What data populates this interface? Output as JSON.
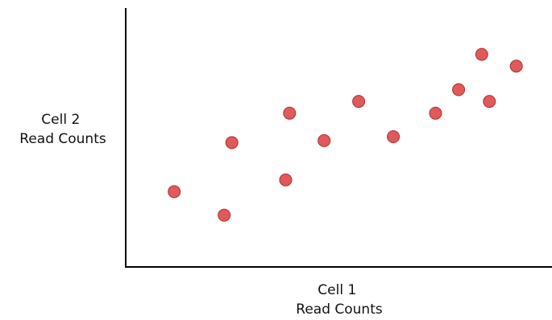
{
  "chart_data": {
    "type": "scatter",
    "title": "",
    "xlabel_lines": [
      "Cell 1",
      "Read Counts"
    ],
    "ylabel_lines": [
      "Cell 2",
      "Read Counts"
    ],
    "xlim": [
      0,
      1
    ],
    "ylim": [
      0,
      1
    ],
    "grid": false,
    "ticks": false,
    "point_color": "#e05a5a",
    "point_edge_color": "#b03030",
    "points": [
      {
        "x": 0.08,
        "y": 0.31
      },
      {
        "x": 0.21,
        "y": 0.19
      },
      {
        "x": 0.23,
        "y": 0.56
      },
      {
        "x": 0.37,
        "y": 0.37
      },
      {
        "x": 0.38,
        "y": 0.71
      },
      {
        "x": 0.47,
        "y": 0.57
      },
      {
        "x": 0.56,
        "y": 0.77
      },
      {
        "x": 0.65,
        "y": 0.59
      },
      {
        "x": 0.76,
        "y": 0.71
      },
      {
        "x": 0.82,
        "y": 0.83
      },
      {
        "x": 0.88,
        "y": 1.01
      },
      {
        "x": 0.9,
        "y": 0.77
      },
      {
        "x": 0.97,
        "y": 0.95
      }
    ]
  }
}
